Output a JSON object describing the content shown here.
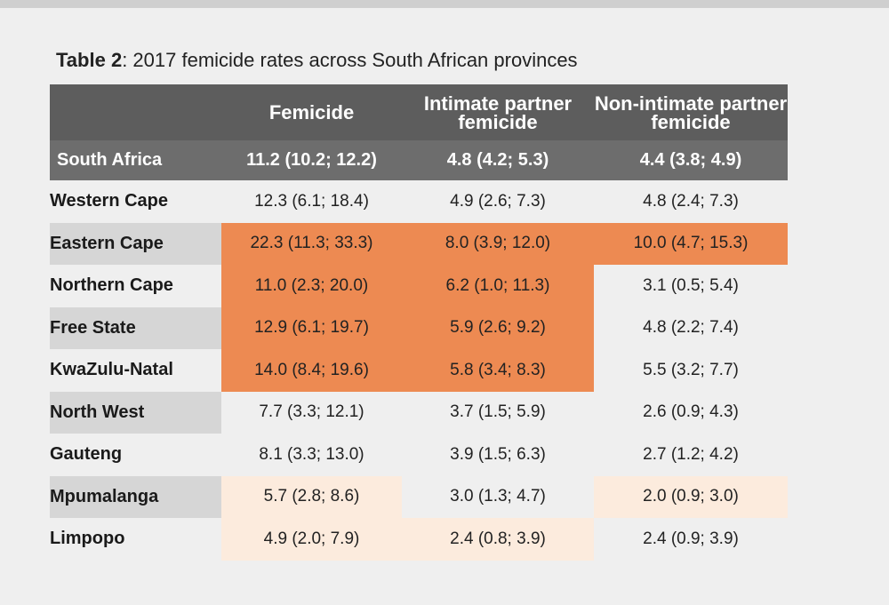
{
  "caption": {
    "label": "Table 2",
    "text": ": 2017 femicide rates across South African provinces"
  },
  "colors": {
    "header_bg": "#5d5d5d",
    "national_row_bg": "#6d6d6d",
    "highlight_high": "#ed8a52",
    "highlight_low": "#fcebdd",
    "row_label_shade": "#d6d6d6",
    "page_bg": "#efefef"
  },
  "table": {
    "headers": [
      "",
      "Femicide",
      "Intimate partner femicide",
      "Non-intimate partner femicide"
    ],
    "national": {
      "label": "South Africa",
      "values": [
        "11.2 (10.2; 12.2)",
        "4.8 (4.2; 5.3)",
        "4.4 (3.8; 4.9)"
      ]
    },
    "rows": [
      {
        "label": "Western Cape",
        "label_shaded": false,
        "values": [
          "12.3 (6.1; 18.4)",
          "4.9 (2.6; 7.3)",
          "4.8 (2.4; 7.3)"
        ],
        "highlights": [
          "none",
          "none",
          "none"
        ]
      },
      {
        "label": "Eastern Cape",
        "label_shaded": true,
        "values": [
          "22.3 (11.3; 33.3)",
          "8.0 (3.9; 12.0)",
          "10.0 (4.7; 15.3)"
        ],
        "highlights": [
          "high",
          "high",
          "high"
        ]
      },
      {
        "label": "Northern Cape",
        "label_shaded": false,
        "values": [
          "11.0 (2.3; 20.0)",
          "6.2 (1.0; 11.3)",
          "3.1 (0.5; 5.4)"
        ],
        "highlights": [
          "high",
          "high",
          "none"
        ]
      },
      {
        "label": "Free State",
        "label_shaded": true,
        "values": [
          "12.9 (6.1; 19.7)",
          "5.9 (2.6; 9.2)",
          "4.8 (2.2; 7.4)"
        ],
        "highlights": [
          "high",
          "high",
          "none"
        ]
      },
      {
        "label": "KwaZulu-Natal",
        "label_shaded": false,
        "values": [
          "14.0 (8.4; 19.6)",
          "5.8 (3.4; 8.3)",
          "5.5 (3.2; 7.7)"
        ],
        "highlights": [
          "high",
          "high",
          "none"
        ]
      },
      {
        "label": "North West",
        "label_shaded": true,
        "values": [
          "7.7 (3.3; 12.1)",
          "3.7 (1.5; 5.9)",
          "2.6 (0.9; 4.3)"
        ],
        "highlights": [
          "none",
          "none",
          "none"
        ]
      },
      {
        "label": "Gauteng",
        "label_shaded": false,
        "values": [
          "8.1 (3.3; 13.0)",
          "3.9 (1.5; 6.3)",
          "2.7 (1.2; 4.2)"
        ],
        "highlights": [
          "none",
          "none",
          "none"
        ]
      },
      {
        "label": "Mpumalanga",
        "label_shaded": true,
        "values": [
          "5.7 (2.8; 8.6)",
          "3.0 (1.3; 4.7)",
          "2.0 (0.9; 3.0)"
        ],
        "highlights": [
          "low",
          "none",
          "low"
        ]
      },
      {
        "label": "Limpopo",
        "label_shaded": false,
        "values": [
          "4.9 (2.0; 7.9)",
          "2.4 (0.8; 3.9)",
          "2.4 (0.9; 3.9)"
        ],
        "highlights": [
          "low",
          "low",
          "none"
        ]
      }
    ]
  }
}
